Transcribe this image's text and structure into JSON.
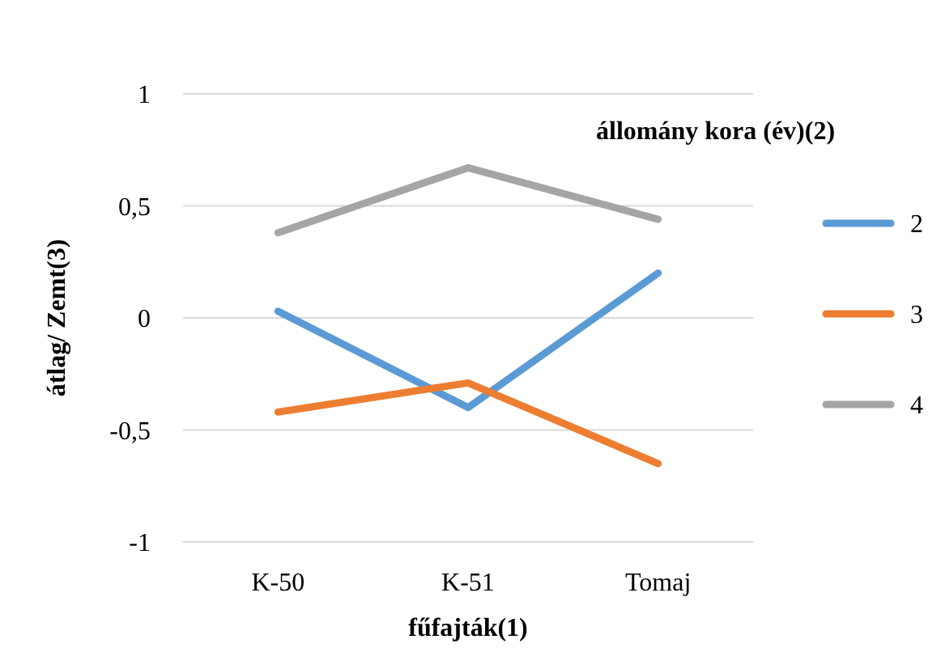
{
  "chart_data": {
    "type": "line",
    "xlabel": "fűfajták(1)",
    "ylabel": "átlag/ Zemt(3)",
    "legend_title": "állomány kora (év)(2)",
    "categories": [
      "K-50",
      "K-51",
      "Tomaj"
    ],
    "ylim": [
      -1,
      1
    ],
    "yticks": [
      -1,
      {
        "value": -0.5,
        "label": "-0,5"
      },
      0,
      {
        "value": 0.5,
        "label": "0,5"
      },
      1
    ],
    "grid": "y",
    "legend": "right",
    "marker": "none",
    "line_style": "solid",
    "series": [
      {
        "name": "2",
        "color": "#5b9bd5",
        "values": [
          0.03,
          -0.4,
          0.2
        ]
      },
      {
        "name": "3",
        "color": "#ed7d31",
        "values": [
          -0.42,
          -0.29,
          -0.65
        ]
      },
      {
        "name": "4",
        "color": "#a5a5a5",
        "values": [
          0.38,
          0.67,
          0.44
        ]
      }
    ]
  }
}
